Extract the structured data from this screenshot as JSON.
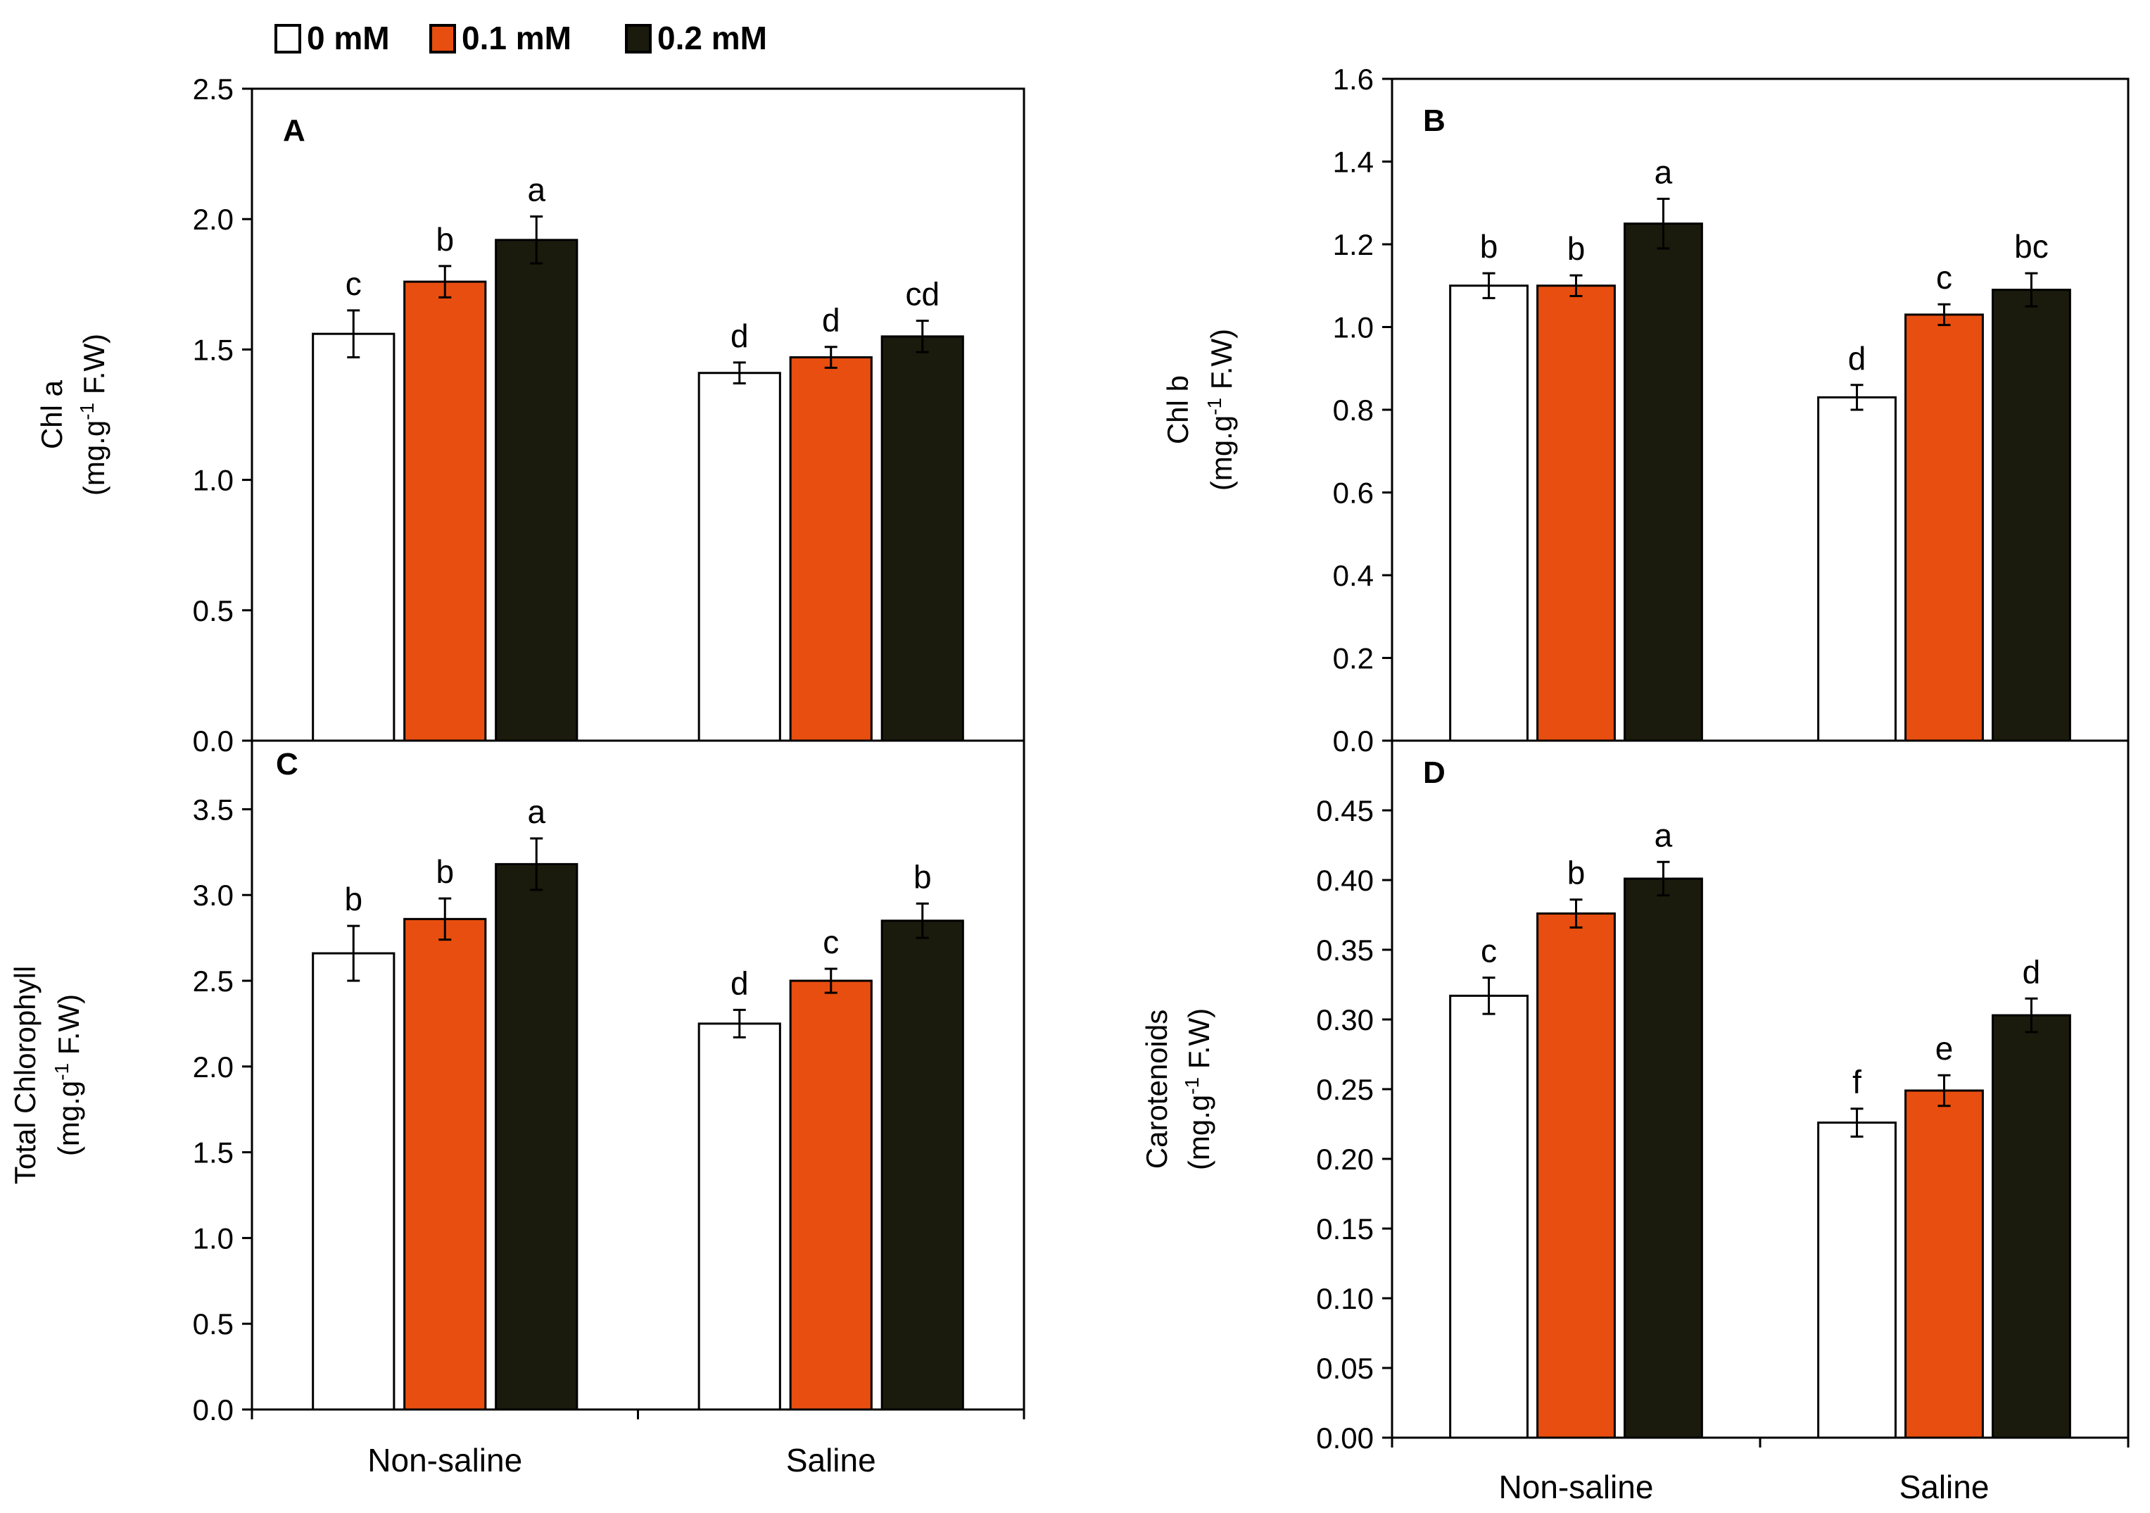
{
  "legend": [
    {
      "label": "0 mM",
      "color": "#ffffff"
    },
    {
      "label": "0.1 mM",
      "color": "#e84e0f"
    },
    {
      "label": "0.2 mM",
      "color": "#1b1b0d"
    }
  ],
  "chart_data": [
    {
      "type": "bar",
      "panel": "A",
      "ylabel_line1": "Chl a",
      "ylabel_line2_pre": "(mg.g",
      "ylabel_sup": "-1",
      "ylabel_line2_post": " F.W)",
      "categories": [
        "Non-saline",
        "Saline"
      ],
      "ylim": [
        0,
        2.5
      ],
      "yticks": [
        "0.0",
        "0.5",
        "1.0",
        "1.5",
        "2.0",
        "2.5"
      ],
      "yticks_values": [
        0,
        0.5,
        1.0,
        1.5,
        2.0,
        2.5
      ],
      "series": [
        {
          "name": "0 mM",
          "values": [
            1.56,
            1.41
          ],
          "errors": [
            0.09,
            0.04
          ],
          "letters": [
            "c",
            "d"
          ]
        },
        {
          "name": "0.1 mM",
          "values": [
            1.76,
            1.47
          ],
          "errors": [
            0.06,
            0.04
          ],
          "letters": [
            "b",
            "d"
          ]
        },
        {
          "name": "0.2 mM",
          "values": [
            1.92,
            1.55
          ],
          "errors": [
            0.09,
            0.06
          ],
          "letters": [
            "a",
            "cd"
          ]
        }
      ]
    },
    {
      "type": "bar",
      "panel": "B",
      "ylabel_line1": "Chl b",
      "ylabel_line2_pre": "(mg.g",
      "ylabel_sup": "-1",
      "ylabel_line2_post": " F.W)",
      "categories": [
        "Non-saline",
        "Saline"
      ],
      "ylim": [
        0,
        1.6
      ],
      "yticks": [
        "0.0",
        "0.2",
        "0.4",
        "0.6",
        "0.8",
        "1.0",
        "1.2",
        "1.4",
        "1.6"
      ],
      "yticks_values": [
        0,
        0.2,
        0.4,
        0.6,
        0.8,
        1.0,
        1.2,
        1.4,
        1.6
      ],
      "series": [
        {
          "name": "0 mM",
          "values": [
            1.1,
            0.83
          ],
          "errors": [
            0.03,
            0.03
          ],
          "letters": [
            "b",
            "d"
          ]
        },
        {
          "name": "0.1 mM",
          "values": [
            1.1,
            1.03
          ],
          "errors": [
            0.025,
            0.025
          ],
          "letters": [
            "b",
            "c"
          ]
        },
        {
          "name": "0.2 mM",
          "values": [
            1.25,
            1.09
          ],
          "errors": [
            0.06,
            0.04
          ],
          "letters": [
            "a",
            "bc"
          ]
        }
      ]
    },
    {
      "type": "bar",
      "panel": "C",
      "ylabel_line1": "Total Chlorophyll",
      "ylabel_line2_pre": "(mg.g",
      "ylabel_sup": "-1",
      "ylabel_line2_post": " F.W)",
      "categories": [
        "Non-saline",
        "Saline"
      ],
      "ylim": [
        0,
        3.9
      ],
      "yticks": [
        "0.0",
        "0.5",
        "1.0",
        "1.5",
        "2.0",
        "2.5",
        "3.0",
        "3.5"
      ],
      "yticks_values": [
        0,
        0.5,
        1.0,
        1.5,
        2.0,
        2.5,
        3.0,
        3.5
      ],
      "series": [
        {
          "name": "0 mM",
          "values": [
            2.66,
            2.25
          ],
          "errors": [
            0.16,
            0.08
          ],
          "letters": [
            "b",
            "d"
          ]
        },
        {
          "name": "0.1 mM",
          "values": [
            2.86,
            2.5
          ],
          "errors": [
            0.12,
            0.07
          ],
          "letters": [
            "b",
            "c"
          ]
        },
        {
          "name": "0.2 mM",
          "values": [
            3.18,
            2.85
          ],
          "errors": [
            0.15,
            0.1
          ],
          "letters": [
            "a",
            "b"
          ]
        }
      ]
    },
    {
      "type": "bar",
      "panel": "D",
      "ylabel_line1": "Carotenoids",
      "ylabel_line2_pre": "(mg.g",
      "ylabel_sup": "-1",
      "ylabel_line2_post": " F.W)",
      "categories": [
        "Non-saline",
        "Saline"
      ],
      "ylim": [
        0,
        0.5
      ],
      "yticks": [
        "0.00",
        "0.05",
        "0.10",
        "0.15",
        "0.20",
        "0.25",
        "0.30",
        "0.35",
        "0.40",
        "0.45"
      ],
      "yticks_values": [
        0,
        0.05,
        0.1,
        0.15,
        0.2,
        0.25,
        0.3,
        0.35,
        0.4,
        0.45
      ],
      "series": [
        {
          "name": "0 mM",
          "values": [
            0.317,
            0.226
          ],
          "errors": [
            0.013,
            0.01
          ],
          "letters": [
            "c",
            "f"
          ]
        },
        {
          "name": "0.1 mM",
          "values": [
            0.376,
            0.249
          ],
          "errors": [
            0.01,
            0.011
          ],
          "letters": [
            "b",
            "e"
          ]
        },
        {
          "name": "0.2 mM",
          "values": [
            0.401,
            0.303
          ],
          "errors": [
            0.012,
            0.012
          ],
          "letters": [
            "a",
            "d"
          ]
        }
      ]
    }
  ]
}
